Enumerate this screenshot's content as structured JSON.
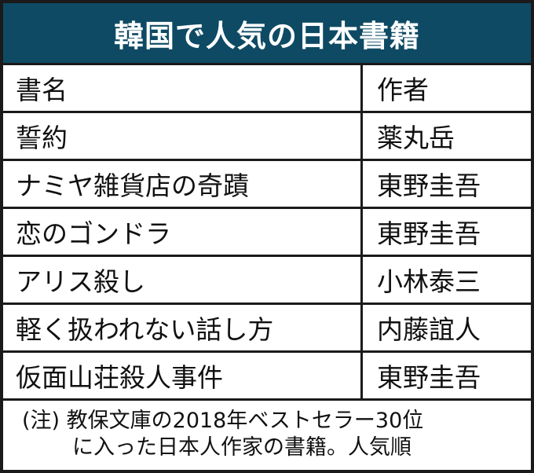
{
  "title": "韓国で人気の日本書籍",
  "colors": {
    "title_bg": "#0e4a64",
    "title_text": "#ffffff",
    "border": "#1a1a1a"
  },
  "table": {
    "headers": [
      "書名",
      "作者"
    ],
    "rows": [
      [
        "誓約",
        "薬丸岳"
      ],
      [
        "ナミヤ雑貨店の奇蹟",
        "東野圭吾"
      ],
      [
        "恋のゴンドラ",
        "東野圭吾"
      ],
      [
        "アリス殺し",
        "小林泰三"
      ],
      [
        "軽く扱われない話し方",
        "内藤誼人"
      ],
      [
        "仮面山荘殺人事件",
        "東野圭吾"
      ]
    ]
  },
  "note": {
    "line1": "(注) 教保文庫の2018年ベストセラー30位",
    "line2": "に入った日本人作家の書籍。人気順"
  }
}
